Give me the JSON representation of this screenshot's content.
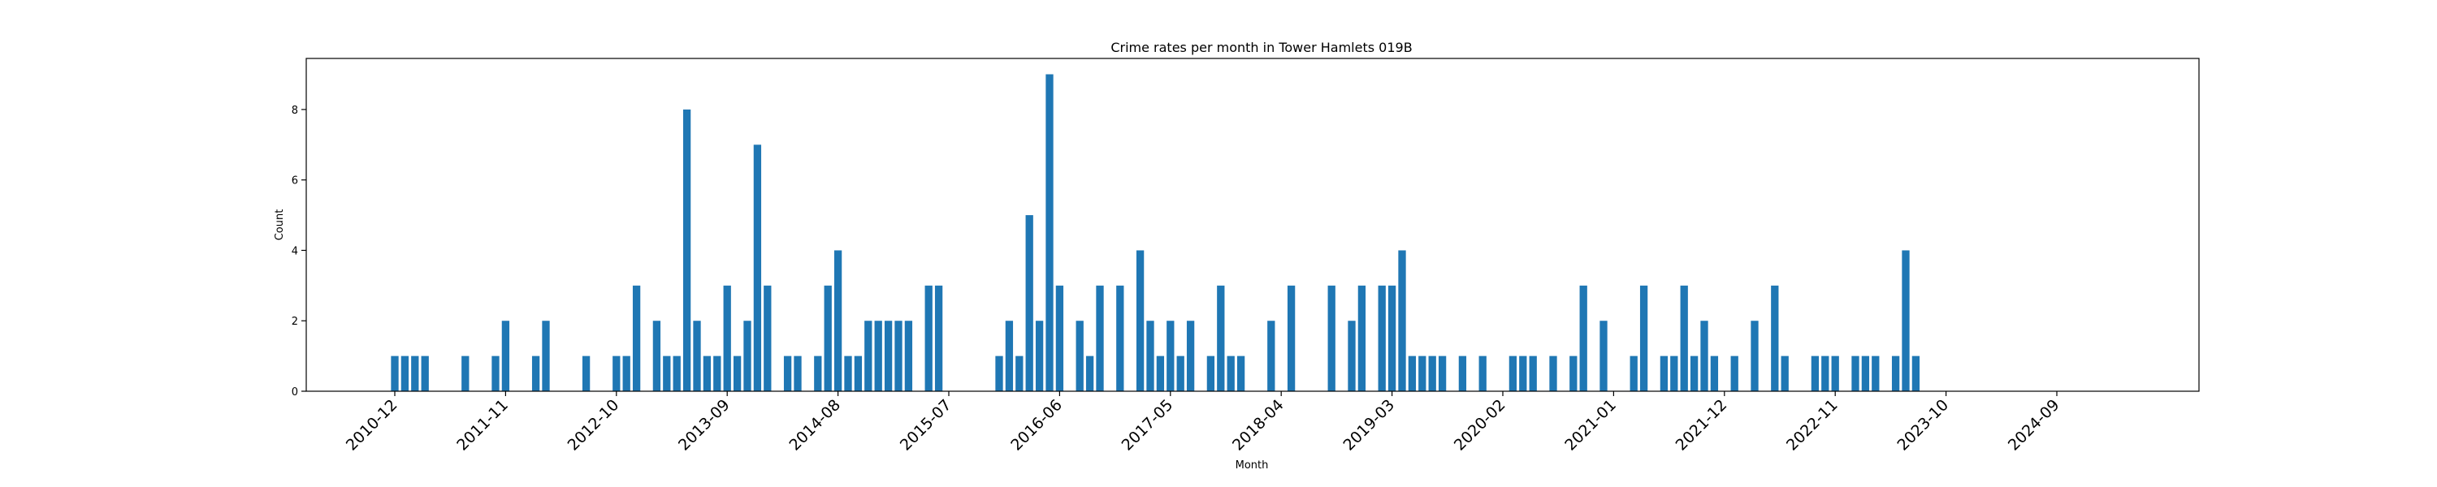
{
  "chart_data": {
    "type": "bar",
    "title": "Crime rates per month in Tower Hamlets 019B",
    "xlabel": "Month",
    "ylabel": "Count",
    "ylim": [
      0,
      9.45
    ],
    "y_ticks": [
      0,
      2,
      4,
      6,
      8
    ],
    "x_tick_labels": [
      "2010-12",
      "2011-11",
      "2012-10",
      "2013-09",
      "2014-08",
      "2015-07",
      "2016-06",
      "2017-05",
      "2018-04",
      "2019-03",
      "2020-02",
      "2021-01",
      "2021-12",
      "2022-11",
      "2023-10",
      "2024-09"
    ],
    "bar_color": "#1f77b4",
    "grid": false,
    "legend": "none",
    "bars": [
      {
        "x": "2010-12",
        "y": 1
      },
      {
        "x": "2011-01",
        "y": 1
      },
      {
        "x": "2011-02",
        "y": 1
      },
      {
        "x": "2011-03",
        "y": 1
      },
      {
        "x": "2011-07",
        "y": 1
      },
      {
        "x": "2011-10",
        "y": 1
      },
      {
        "x": "2011-11",
        "y": 2
      },
      {
        "x": "2012-02",
        "y": 1
      },
      {
        "x": "2012-03",
        "y": 2
      },
      {
        "x": "2012-07",
        "y": 1
      },
      {
        "x": "2012-10",
        "y": 1
      },
      {
        "x": "2012-11",
        "y": 1
      },
      {
        "x": "2012-12",
        "y": 3
      },
      {
        "x": "2013-02",
        "y": 2
      },
      {
        "x": "2013-03",
        "y": 1
      },
      {
        "x": "2013-04",
        "y": 1
      },
      {
        "x": "2013-05",
        "y": 8
      },
      {
        "x": "2013-06",
        "y": 2
      },
      {
        "x": "2013-07",
        "y": 1
      },
      {
        "x": "2013-08",
        "y": 1
      },
      {
        "x": "2013-09",
        "y": 3
      },
      {
        "x": "2013-10",
        "y": 1
      },
      {
        "x": "2013-11",
        "y": 2
      },
      {
        "x": "2013-12",
        "y": 7
      },
      {
        "x": "2014-01",
        "y": 3
      },
      {
        "x": "2014-03",
        "y": 1
      },
      {
        "x": "2014-04",
        "y": 1
      },
      {
        "x": "2014-06",
        "y": 1
      },
      {
        "x": "2014-07",
        "y": 3
      },
      {
        "x": "2014-08",
        "y": 4
      },
      {
        "x": "2014-09",
        "y": 1
      },
      {
        "x": "2014-10",
        "y": 1
      },
      {
        "x": "2014-11",
        "y": 2
      },
      {
        "x": "2014-12",
        "y": 2
      },
      {
        "x": "2015-01",
        "y": 2
      },
      {
        "x": "2015-02",
        "y": 2
      },
      {
        "x": "2015-03",
        "y": 2
      },
      {
        "x": "2015-05",
        "y": 3
      },
      {
        "x": "2015-06",
        "y": 3
      },
      {
        "x": "2015-12",
        "y": 1
      },
      {
        "x": "2016-01",
        "y": 2
      },
      {
        "x": "2016-02",
        "y": 1
      },
      {
        "x": "2016-03",
        "y": 5
      },
      {
        "x": "2016-04",
        "y": 2
      },
      {
        "x": "2016-05",
        "y": 9
      },
      {
        "x": "2016-06",
        "y": 3
      },
      {
        "x": "2016-08",
        "y": 2
      },
      {
        "x": "2016-09",
        "y": 1
      },
      {
        "x": "2016-10",
        "y": 3
      },
      {
        "x": "2016-12",
        "y": 3
      },
      {
        "x": "2017-02",
        "y": 4
      },
      {
        "x": "2017-03",
        "y": 2
      },
      {
        "x": "2017-04",
        "y": 1
      },
      {
        "x": "2017-05",
        "y": 2
      },
      {
        "x": "2017-06",
        "y": 1
      },
      {
        "x": "2017-07",
        "y": 2
      },
      {
        "x": "2017-09",
        "y": 1
      },
      {
        "x": "2017-10",
        "y": 3
      },
      {
        "x": "2017-11",
        "y": 1
      },
      {
        "x": "2017-12",
        "y": 1
      },
      {
        "x": "2018-03",
        "y": 2
      },
      {
        "x": "2018-05",
        "y": 3
      },
      {
        "x": "2018-09",
        "y": 3
      },
      {
        "x": "2018-11",
        "y": 2
      },
      {
        "x": "2018-12",
        "y": 3
      },
      {
        "x": "2019-02",
        "y": 3
      },
      {
        "x": "2019-03",
        "y": 3
      },
      {
        "x": "2019-04",
        "y": 4
      },
      {
        "x": "2019-05",
        "y": 1
      },
      {
        "x": "2019-06",
        "y": 1
      },
      {
        "x": "2019-07",
        "y": 1
      },
      {
        "x": "2019-08",
        "y": 1
      },
      {
        "x": "2019-10",
        "y": 1
      },
      {
        "x": "2019-12",
        "y": 1
      },
      {
        "x": "2020-03",
        "y": 1
      },
      {
        "x": "2020-04",
        "y": 1
      },
      {
        "x": "2020-05",
        "y": 1
      },
      {
        "x": "2020-07",
        "y": 1
      },
      {
        "x": "2020-09",
        "y": 1
      },
      {
        "x": "2020-10",
        "y": 3
      },
      {
        "x": "2020-12",
        "y": 2
      },
      {
        "x": "2021-03",
        "y": 1
      },
      {
        "x": "2021-04",
        "y": 3
      },
      {
        "x": "2021-06",
        "y": 1
      },
      {
        "x": "2021-07",
        "y": 1
      },
      {
        "x": "2021-08",
        "y": 3
      },
      {
        "x": "2021-09",
        "y": 1
      },
      {
        "x": "2021-10",
        "y": 2
      },
      {
        "x": "2021-11",
        "y": 1
      },
      {
        "x": "2022-01",
        "y": 1
      },
      {
        "x": "2022-03",
        "y": 2
      },
      {
        "x": "2022-05",
        "y": 3
      },
      {
        "x": "2022-06",
        "y": 1
      },
      {
        "x": "2022-09",
        "y": 1
      },
      {
        "x": "2022-10",
        "y": 1
      },
      {
        "x": "2022-11",
        "y": 1
      },
      {
        "x": "2023-01",
        "y": 1
      },
      {
        "x": "2023-02",
        "y": 1
      },
      {
        "x": "2023-03",
        "y": 1
      },
      {
        "x": "2023-05",
        "y": 1
      },
      {
        "x": "2023-06",
        "y": 4
      },
      {
        "x": "2023-07",
        "y": 1
      }
    ]
  }
}
